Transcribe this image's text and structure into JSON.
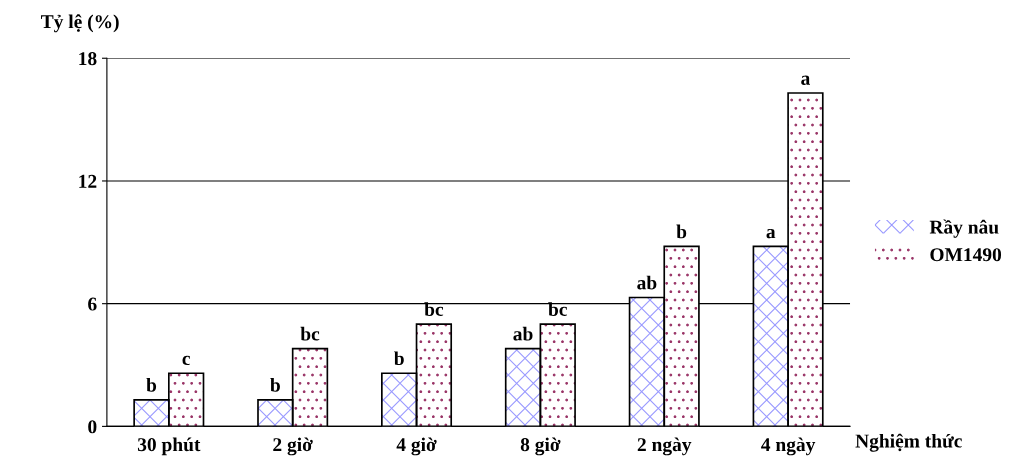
{
  "chart_data": {
    "type": "bar",
    "ylabel": "Tỷ lệ (%)",
    "xlabel": "Nghiệm thức",
    "categories": [
      "30 phút",
      "2 giờ",
      "4 giờ",
      "8 giờ",
      "2 ngày",
      "4 ngày"
    ],
    "series": [
      {
        "name": "Rầy nâu",
        "color": "#9999ff",
        "values": [
          1.3,
          1.3,
          2.6,
          3.8,
          6.3,
          8.8
        ],
        "value_labels": [
          "b",
          "b",
          "b",
          "ab",
          "ab",
          "a"
        ]
      },
      {
        "name": "OM1490",
        "color": "#993366",
        "values": [
          2.6,
          3.8,
          5.0,
          5.0,
          8.8,
          16.3
        ],
        "value_labels": [
          "c",
          "bc",
          "bc",
          "bc",
          "b",
          "a"
        ]
      }
    ],
    "ylim": [
      0,
      18
    ],
    "yticks": [
      0,
      6,
      12,
      18
    ],
    "grid": "y",
    "legend": "right"
  }
}
